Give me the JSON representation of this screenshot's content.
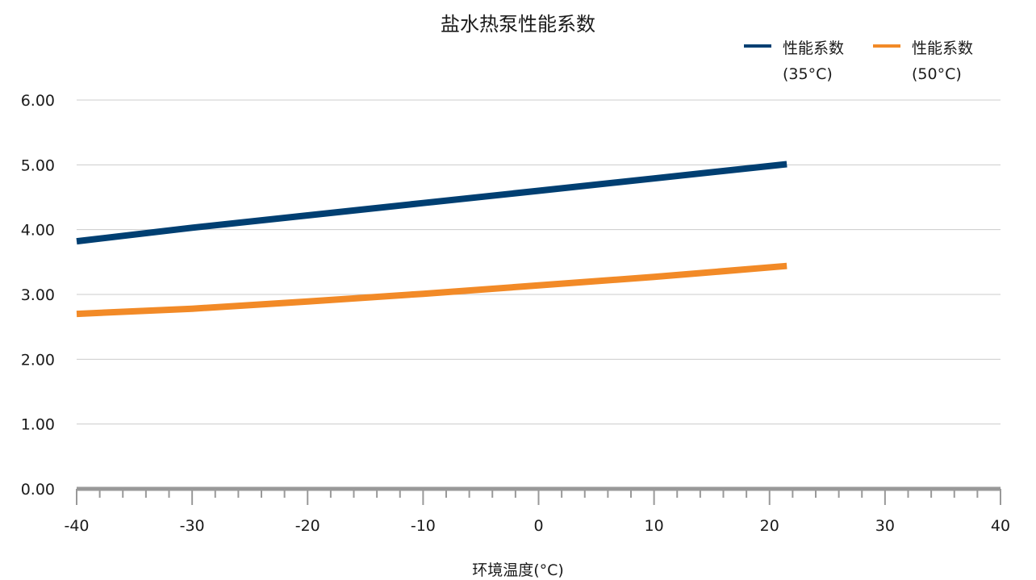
{
  "chart_data": {
    "type": "line",
    "title": "盐水热泵性能系数",
    "xlabel": "环境温度(°C)",
    "ylabel": "",
    "xlim": [
      -40,
      40
    ],
    "ylim": [
      0,
      6
    ],
    "xticks": [
      -40,
      -30,
      -20,
      -10,
      0,
      10,
      20,
      30,
      40
    ],
    "xtick_labels": [
      "-40",
      "-30",
      "-20",
      "-10",
      "0",
      "10",
      "20",
      "30",
      "40"
    ],
    "yticks": [
      0,
      1,
      2,
      3,
      4,
      5,
      6
    ],
    "ytick_labels": [
      "0.00",
      "1.00",
      "2.00",
      "3.00",
      "4.00",
      "5.00",
      "6.00"
    ],
    "grid": "horizontal",
    "legend_position": "top-right",
    "series": [
      {
        "name": "性能系数(35°C)",
        "color": "#003f72",
        "x": [
          -40,
          -30,
          -20,
          -10,
          0,
          10,
          21.5
        ],
        "y": [
          3.82,
          4.03,
          4.22,
          4.41,
          4.6,
          4.79,
          5.01
        ]
      },
      {
        "name": "性能系数(50°C)",
        "color": "#f28a27",
        "x": [
          -40,
          -30,
          -20,
          -10,
          0,
          10,
          21.5
        ],
        "y": [
          2.7,
          2.78,
          2.89,
          3.01,
          3.14,
          3.27,
          3.44
        ]
      }
    ]
  }
}
